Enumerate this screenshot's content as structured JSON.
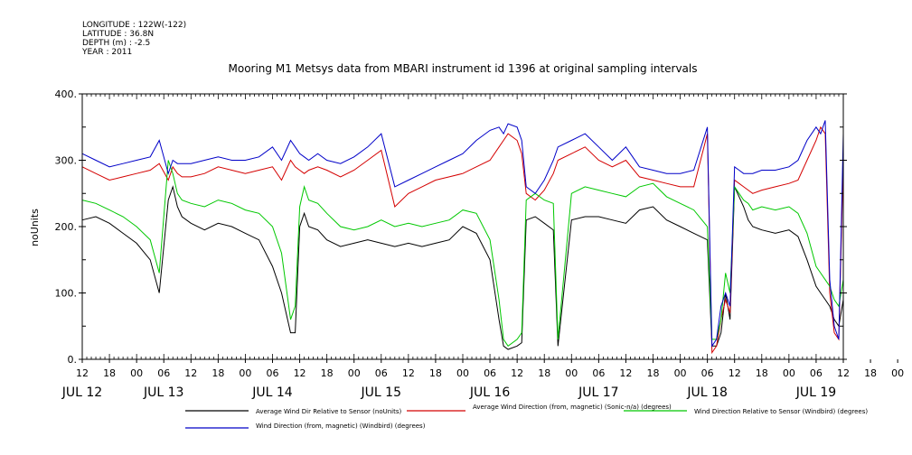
{
  "header": {
    "longitude": "LONGITUDE : 122W(-122)",
    "latitude": "LATITUDE : 36.8N",
    "depth": "DEPTH (m) : -2.5",
    "year": "YEAR : 2011"
  },
  "chart_data": {
    "type": "line",
    "title": "Mooring M1 Metsys data from MBARI instrument id 1396 at original sampling intervals",
    "ylabel": "noUnits",
    "xlabel": "",
    "ylim": [
      0,
      400
    ],
    "xlim_hours": [
      0,
      168
    ],
    "y_ticks": [
      "0.",
      "100.",
      "200.",
      "300.",
      "400."
    ],
    "y_tick_values": [
      0,
      100,
      200,
      300,
      400
    ],
    "hour_ticks": [
      "12",
      "18",
      "00",
      "06",
      "12",
      "18",
      "00",
      "06",
      "12",
      "18",
      "00",
      "06",
      "12",
      "18",
      "00",
      "06",
      "12",
      "18",
      "00",
      "06",
      "12",
      "18",
      "00",
      "06",
      "12",
      "18",
      "00",
      "06",
      "12",
      "18",
      "00",
      "06",
      "12",
      "18",
      "00",
      "06",
      "12"
    ],
    "day_labels": [
      "JUL 12",
      "JUL 13",
      "JUL 14",
      "JUL 15",
      "JUL 16",
      "JUL 17",
      "JUL 18",
      "JUL 19"
    ],
    "day_label_hours": [
      0,
      18,
      42,
      66,
      90,
      114,
      138,
      162
    ],
    "grid": false,
    "legend_position": "bottom",
    "series": [
      {
        "name": "Average Wind Dir Relative to Sensor (noUnits)",
        "color": "#000000",
        "x": [
          0,
          3,
          6,
          9,
          12,
          15,
          17,
          19,
          20,
          21,
          22,
          24,
          27,
          30,
          33,
          36,
          39,
          42,
          44,
          46,
          47,
          48,
          49,
          50,
          52,
          54,
          57,
          60,
          63,
          66,
          69,
          72,
          75,
          78,
          81,
          84,
          87,
          90,
          92,
          93,
          94,
          96,
          97,
          98,
          100,
          102,
          104,
          105,
          108,
          111,
          114,
          117,
          120,
          123,
          126,
          129,
          132,
          135,
          138,
          139,
          140,
          141,
          142,
          143,
          144,
          145,
          146,
          147,
          148,
          150,
          153,
          156,
          158,
          160,
          162,
          163,
          164,
          165,
          166,
          167,
          168
        ],
        "y": [
          210,
          215,
          205,
          190,
          175,
          150,
          100,
          240,
          260,
          230,
          215,
          205,
          195,
          205,
          200,
          190,
          180,
          140,
          100,
          40,
          40,
          200,
          220,
          200,
          195,
          180,
          170,
          175,
          180,
          175,
          170,
          175,
          170,
          175,
          180,
          200,
          190,
          150,
          60,
          20,
          15,
          20,
          25,
          210,
          215,
          205,
          195,
          20,
          210,
          215,
          215,
          210,
          205,
          225,
          230,
          210,
          200,
          190,
          180,
          20,
          20,
          40,
          100,
          60,
          260,
          245,
          230,
          210,
          200,
          195,
          190,
          195,
          185,
          150,
          110,
          100,
          90,
          80,
          60,
          50,
          90
        ]
      },
      {
        "name": "Average Wind Direction (from, magnetic) (Sonic-n/a) (degrees)",
        "color": "#d40000",
        "x": [
          0,
          3,
          6,
          9,
          12,
          15,
          17,
          19,
          20,
          21,
          22,
          24,
          27,
          30,
          33,
          36,
          39,
          42,
          44,
          46,
          47,
          48,
          49,
          50,
          52,
          54,
          57,
          60,
          63,
          66,
          69,
          72,
          75,
          78,
          81,
          84,
          87,
          90,
          92,
          93,
          94,
          96,
          97,
          98,
          100,
          102,
          104,
          105,
          108,
          111,
          114,
          117,
          120,
          123,
          126,
          129,
          132,
          135,
          138,
          139,
          140,
          141,
          142,
          143,
          144,
          145,
          146,
          147,
          148,
          150,
          153,
          156,
          158,
          160,
          162,
          163,
          164,
          165,
          166,
          167,
          168
        ],
        "y": [
          290,
          280,
          270,
          275,
          280,
          285,
          295,
          270,
          290,
          280,
          275,
          275,
          280,
          290,
          285,
          280,
          285,
          290,
          270,
          300,
          290,
          285,
          280,
          285,
          290,
          285,
          275,
          285,
          300,
          315,
          230,
          250,
          260,
          270,
          275,
          280,
          290,
          300,
          320,
          330,
          340,
          330,
          310,
          250,
          240,
          255,
          280,
          300,
          310,
          320,
          300,
          290,
          300,
          275,
          270,
          265,
          260,
          260,
          340,
          10,
          20,
          60,
          90,
          70,
          270,
          265,
          260,
          255,
          250,
          255,
          260,
          265,
          270,
          300,
          330,
          350,
          340,
          100,
          40,
          30,
          300
        ]
      },
      {
        "name": "Wind Direction Relative to Sensor (Windbird) (degrees)",
        "color": "#00c800",
        "x": [
          0,
          3,
          6,
          9,
          12,
          15,
          17,
          19,
          20,
          21,
          22,
          24,
          27,
          30,
          33,
          36,
          39,
          42,
          44,
          46,
          47,
          48,
          49,
          50,
          52,
          54,
          57,
          60,
          63,
          66,
          69,
          72,
          75,
          78,
          81,
          84,
          87,
          90,
          92,
          93,
          94,
          96,
          97,
          98,
          100,
          102,
          104,
          105,
          108,
          111,
          114,
          117,
          120,
          123,
          126,
          129,
          132,
          135,
          138,
          139,
          140,
          141,
          142,
          143,
          144,
          145,
          146,
          147,
          148,
          150,
          153,
          156,
          158,
          160,
          162,
          163,
          164,
          165,
          166,
          167,
          168
        ],
        "y": [
          240,
          235,
          225,
          215,
          200,
          180,
          130,
          300,
          280,
          250,
          240,
          235,
          230,
          240,
          235,
          225,
          220,
          200,
          160,
          60,
          80,
          230,
          260,
          240,
          235,
          220,
          200,
          195,
          200,
          210,
          200,
          205,
          200,
          205,
          210,
          225,
          220,
          180,
          90,
          30,
          20,
          30,
          40,
          240,
          250,
          240,
          235,
          30,
          250,
          260,
          255,
          250,
          245,
          260,
          265,
          245,
          235,
          225,
          200,
          30,
          30,
          60,
          130,
          100,
          260,
          250,
          240,
          235,
          225,
          230,
          225,
          230,
          220,
          190,
          140,
          130,
          120,
          110,
          90,
          80,
          120
        ]
      },
      {
        "name": "Wind Direction (from, magnetic) (Windbird) (degrees)",
        "color": "#0000c8",
        "x": [
          0,
          3,
          6,
          9,
          12,
          15,
          17,
          19,
          20,
          21,
          22,
          24,
          27,
          30,
          33,
          36,
          39,
          42,
          44,
          46,
          47,
          48,
          49,
          50,
          52,
          54,
          57,
          60,
          63,
          66,
          69,
          72,
          75,
          78,
          81,
          84,
          87,
          90,
          92,
          93,
          94,
          96,
          97,
          98,
          100,
          102,
          104,
          105,
          108,
          111,
          114,
          117,
          120,
          123,
          126,
          129,
          132,
          135,
          138,
          139,
          140,
          141,
          142,
          143,
          144,
          145,
          146,
          147,
          148,
          150,
          153,
          156,
          158,
          160,
          162,
          163,
          164,
          165,
          166,
          167,
          168
        ],
        "y": [
          310,
          300,
          290,
          295,
          300,
          305,
          330,
          280,
          300,
          295,
          295,
          295,
          300,
          305,
          300,
          300,
          305,
          320,
          300,
          330,
          320,
          310,
          305,
          300,
          310,
          300,
          295,
          305,
          320,
          340,
          260,
          270,
          280,
          290,
          300,
          310,
          330,
          345,
          350,
          340,
          355,
          350,
          330,
          260,
          250,
          270,
          300,
          320,
          330,
          340,
          320,
          300,
          320,
          290,
          285,
          280,
          280,
          285,
          350,
          20,
          30,
          80,
          100,
          80,
          290,
          285,
          280,
          280,
          280,
          285,
          285,
          290,
          300,
          330,
          350,
          340,
          360,
          120,
          50,
          30,
          340
        ]
      }
    ]
  }
}
